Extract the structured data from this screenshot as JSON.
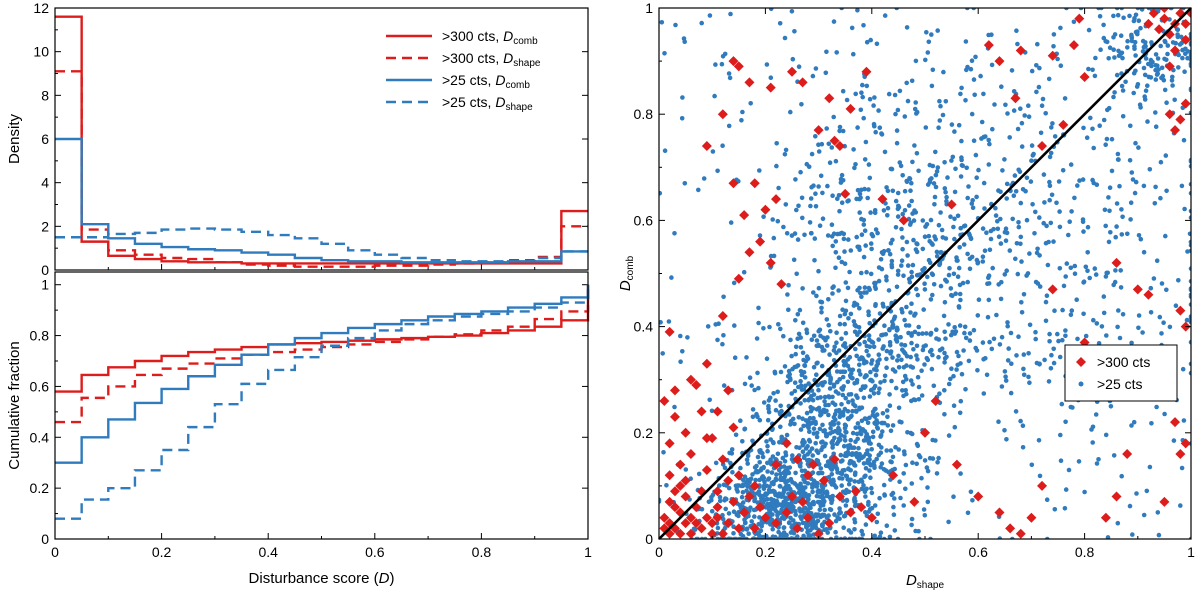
{
  "colors": {
    "red": "#dd1c1c",
    "blue": "#2f7bbd",
    "black": "#000000"
  },
  "chart_data": [
    {
      "id": "density",
      "type": "line",
      "subtype": "step-histogram",
      "title": "",
      "xlabel": "",
      "ylabel": "Density",
      "xlim": [
        0,
        1
      ],
      "ylim": [
        0,
        12
      ],
      "yticks": [
        0,
        2,
        4,
        6,
        8,
        10,
        12
      ],
      "bin_edges": [
        0,
        0.05,
        0.1,
        0.15,
        0.2,
        0.25,
        0.3,
        0.35,
        0.4,
        0.45,
        0.5,
        0.55,
        0.6,
        0.65,
        0.7,
        0.75,
        0.8,
        0.85,
        0.9,
        0.95,
        1.0
      ],
      "legend": {
        "location": "top-right"
      },
      "series": [
        {
          "name_main": ">300 cts, ",
          "name_var": "D",
          "name_sub": "comb",
          "color": "red",
          "dash": "solid",
          "values": [
            11.6,
            1.3,
            0.65,
            0.5,
            0.4,
            0.35,
            0.35,
            0.3,
            0.3,
            0.3,
            0.3,
            0.3,
            0.3,
            0.3,
            0.3,
            0.3,
            0.3,
            0.3,
            0.3,
            2.7
          ]
        },
        {
          "name_main": ">300 cts, ",
          "name_var": "D",
          "name_sub": "shape",
          "color": "red",
          "dash": "dashed",
          "values": [
            9.1,
            1.85,
            0.9,
            0.7,
            0.55,
            0.5,
            0.35,
            0.25,
            0.2,
            0.15,
            0.15,
            0.15,
            0.2,
            0.2,
            0.25,
            0.3,
            0.35,
            0.45,
            0.6,
            2.0
          ]
        },
        {
          "name_main": ">25 cts, ",
          "name_var": "D",
          "name_sub": "comb",
          "color": "blue",
          "dash": "solid",
          "values": [
            6.0,
            2.1,
            1.45,
            1.2,
            1.05,
            0.95,
            0.9,
            0.8,
            0.7,
            0.55,
            0.45,
            0.4,
            0.4,
            0.35,
            0.35,
            0.35,
            0.35,
            0.4,
            0.4,
            0.85
          ]
        },
        {
          "name_main": ">25 cts, ",
          "name_var": "D",
          "name_sub": "shape",
          "color": "blue",
          "dash": "dashed",
          "values": [
            1.5,
            1.5,
            1.65,
            1.7,
            1.85,
            1.9,
            1.85,
            1.75,
            1.6,
            1.45,
            1.2,
            0.9,
            0.7,
            0.55,
            0.45,
            0.4,
            0.4,
            0.4,
            0.55,
            0.85
          ]
        }
      ]
    },
    {
      "id": "cumulative",
      "type": "line",
      "subtype": "step-cumulative",
      "title": "",
      "xlabel": "Disturbance score (",
      "xlabel_var": "D",
      "xlabel_end": ")",
      "ylabel": "Cumulative fraction",
      "xlim": [
        0,
        1
      ],
      "ylim": [
        0,
        1.05
      ],
      "xticks": [
        0,
        0.2,
        0.4,
        0.6,
        0.8,
        1
      ],
      "xtick_labels": [
        "0",
        "0.2",
        "0.4",
        "0.6",
        "0.8",
        "1"
      ],
      "yticks": [
        0,
        0.2,
        0.4,
        0.6,
        0.8,
        1
      ],
      "ytick_labels": [
        "0",
        "0.2",
        "0.4",
        "0.6",
        "0.8",
        "1"
      ],
      "bin_edges": [
        0,
        0.05,
        0.1,
        0.15,
        0.2,
        0.25,
        0.3,
        0.35,
        0.4,
        0.45,
        0.5,
        0.55,
        0.6,
        0.65,
        0.7,
        0.75,
        0.8,
        0.85,
        0.9,
        0.95,
        1.0
      ],
      "series": [
        {
          "name": ">300 cts, D_comb",
          "color": "red",
          "dash": "solid",
          "values": [
            0.58,
            0.645,
            0.675,
            0.7,
            0.72,
            0.735,
            0.745,
            0.755,
            0.765,
            0.77,
            0.775,
            0.78,
            0.785,
            0.79,
            0.795,
            0.8,
            0.81,
            0.82,
            0.835,
            0.86,
            1.0
          ]
        },
        {
          "name": ">300 cts, D_shape",
          "color": "red",
          "dash": "dashed",
          "values": [
            0.46,
            0.555,
            0.6,
            0.645,
            0.67,
            0.69,
            0.71,
            0.725,
            0.735,
            0.745,
            0.755,
            0.765,
            0.775,
            0.785,
            0.795,
            0.805,
            0.82,
            0.835,
            0.865,
            0.895,
            1.0
          ]
        },
        {
          "name": ">25 cts, D_comb",
          "color": "blue",
          "dash": "solid",
          "values": [
            0.3,
            0.4,
            0.47,
            0.535,
            0.59,
            0.64,
            0.685,
            0.725,
            0.765,
            0.79,
            0.81,
            0.83,
            0.845,
            0.86,
            0.875,
            0.885,
            0.895,
            0.91,
            0.925,
            0.95,
            1.0
          ]
        },
        {
          "name": ">25 cts, D_shape",
          "color": "blue",
          "dash": "dashed",
          "values": [
            0.08,
            0.155,
            0.2,
            0.27,
            0.35,
            0.44,
            0.53,
            0.61,
            0.665,
            0.715,
            0.76,
            0.79,
            0.82,
            0.845,
            0.86,
            0.875,
            0.885,
            0.895,
            0.91,
            0.93,
            1.0
          ]
        }
      ]
    },
    {
      "id": "scatter",
      "type": "scatter",
      "title": "",
      "xlabel_var": "D",
      "xlabel_sub": "shape",
      "ylabel_var": "D",
      "ylabel_sub": "comb",
      "xlim": [
        0,
        1
      ],
      "ylim": [
        0,
        1
      ],
      "xticks": [
        0,
        0.2,
        0.4,
        0.6,
        0.8,
        1
      ],
      "xtick_labels": [
        "0",
        "0.2",
        "0.4",
        "0.6",
        "0.8",
        "1"
      ],
      "yticks": [
        0,
        0.2,
        0.4,
        0.6,
        0.8,
        1
      ],
      "ytick_labels": [
        "0",
        "0.2",
        "0.4",
        "0.6",
        "0.8",
        "1"
      ],
      "reference_line": {
        "from": [
          0,
          0
        ],
        "to": [
          1,
          1
        ],
        "color": "black"
      },
      "legend": {
        "location": "center-right"
      },
      "series": [
        {
          "name": ">300 cts",
          "marker": "diamond",
          "color": "red",
          "points": [
            [
              0.02,
              0.01
            ],
            [
              0.03,
              0.02
            ],
            [
              0.05,
              0.03
            ],
            [
              0.01,
              0.04
            ],
            [
              0.06,
              0.01
            ],
            [
              0.08,
              0.02
            ],
            [
              0.04,
              0.05
            ],
            [
              0.1,
              0.03
            ],
            [
              0.12,
              0.01
            ],
            [
              0.02,
              0.07
            ],
            [
              0.07,
              0.06
            ],
            [
              0.09,
              0.04
            ],
            [
              0.11,
              0.06
            ],
            [
              0.13,
              0.03
            ],
            [
              0.15,
              0.02
            ],
            [
              0.03,
              0.09
            ],
            [
              0.05,
              0.11
            ],
            [
              0.08,
              0.09
            ],
            [
              0.14,
              0.07
            ],
            [
              0.16,
              0.05
            ],
            [
              0.18,
              0.02
            ],
            [
              0.2,
              0.04
            ],
            [
              0.01,
              0.02
            ],
            [
              0.02,
              0.03
            ],
            [
              0.04,
              0.01
            ],
            [
              0.06,
              0.04
            ],
            [
              0.03,
              0.06
            ],
            [
              0.05,
              0.08
            ],
            [
              0.07,
              0.03
            ],
            [
              0.1,
              0.01
            ],
            [
              0.11,
              0.09
            ],
            [
              0.13,
              0.11
            ],
            [
              0.17,
              0.08
            ],
            [
              0.19,
              0.06
            ],
            [
              0.22,
              0.03
            ],
            [
              0.24,
              0.05
            ],
            [
              0.26,
              0.02
            ],
            [
              0.28,
              0.04
            ],
            [
              0.3,
              0.01
            ],
            [
              0.32,
              0.03
            ],
            [
              0.02,
              0.12
            ],
            [
              0.04,
              0.14
            ],
            [
              0.06,
              0.16
            ],
            [
              0.09,
              0.13
            ],
            [
              0.12,
              0.15
            ],
            [
              0.15,
              0.12
            ],
            [
              0.02,
              0.18
            ],
            [
              0.05,
              0.2
            ],
            [
              0.03,
              0.23
            ],
            [
              0.08,
              0.24
            ],
            [
              0.1,
              0.19
            ],
            [
              0.14,
              0.21
            ],
            [
              0.01,
              0.26
            ],
            [
              0.03,
              0.28
            ],
            [
              0.06,
              0.3
            ],
            [
              0.09,
              0.33
            ],
            [
              0.02,
              0.39
            ],
            [
              0.12,
              0.42
            ],
            [
              0.15,
              0.49
            ],
            [
              0.17,
              0.54
            ],
            [
              0.19,
              0.56
            ],
            [
              0.21,
              0.52
            ],
            [
              0.23,
              0.48
            ],
            [
              0.16,
              0.61
            ],
            [
              0.2,
              0.62
            ],
            [
              0.22,
              0.64
            ],
            [
              0.18,
              0.67
            ],
            [
              0.14,
              0.67
            ],
            [
              0.09,
              0.74
            ],
            [
              0.12,
              0.8
            ],
            [
              0.14,
              0.9
            ],
            [
              0.15,
              0.89
            ],
            [
              0.17,
              0.86
            ],
            [
              0.21,
              0.85
            ],
            [
              0.25,
              0.88
            ],
            [
              0.27,
              0.86
            ],
            [
              0.32,
              0.83
            ],
            [
              0.36,
              0.81
            ],
            [
              0.3,
              0.77
            ],
            [
              0.33,
              0.75
            ],
            [
              0.34,
              0.74
            ],
            [
              0.35,
              0.65
            ],
            [
              0.39,
              0.88
            ],
            [
              0.42,
              0.64
            ],
            [
              0.46,
              0.6
            ],
            [
              0.55,
              0.63
            ],
            [
              0.62,
              0.93
            ],
            [
              0.64,
              0.9
            ],
            [
              0.67,
              0.83
            ],
            [
              0.68,
              0.92
            ],
            [
              0.74,
              0.91
            ],
            [
              0.78,
              0.93
            ],
            [
              0.8,
              0.87
            ],
            [
              0.79,
              0.98
            ],
            [
              0.76,
              0.78
            ],
            [
              0.72,
              0.74
            ],
            [
              0.74,
              0.47
            ],
            [
              0.8,
              0.37
            ],
            [
              0.84,
              0.35
            ],
            [
              0.86,
              0.52
            ],
            [
              0.9,
              0.47
            ],
            [
              0.92,
              0.46
            ],
            [
              0.88,
              0.16
            ],
            [
              0.86,
              0.08
            ],
            [
              0.84,
              0.04
            ],
            [
              0.72,
              0.1
            ],
            [
              0.7,
              0.04
            ],
            [
              0.68,
              0.01
            ],
            [
              0.66,
              0.02
            ],
            [
              0.64,
              0.05
            ],
            [
              0.6,
              0.08
            ],
            [
              0.56,
              0.14
            ],
            [
              0.52,
              0.26
            ],
            [
              0.5,
              0.2
            ],
            [
              0.48,
              0.07
            ],
            [
              0.44,
              0.12
            ],
            [
              0.4,
              0.04
            ],
            [
              0.38,
              0.06
            ],
            [
              0.36,
              0.05
            ],
            [
              0.34,
              0.08
            ],
            [
              0.31,
              0.11
            ],
            [
              0.28,
              0.12
            ],
            [
              0.26,
              0.15
            ],
            [
              0.24,
              0.18
            ],
            [
              0.22,
              0.14
            ],
            [
              0.25,
              0.08
            ],
            [
              0.27,
              0.07
            ],
            [
              0.29,
              0.14
            ],
            [
              0.33,
              0.15
            ],
            [
              0.37,
              0.09
            ],
            [
              0.95,
              0.07
            ],
            [
              0.97,
              0.22
            ],
            [
              0.98,
              0.16
            ],
            [
              0.99,
              0.18
            ],
            [
              0.98,
              0.43
            ],
            [
              0.99,
              0.4
            ],
            [
              0.96,
              0.8
            ],
            [
              0.97,
              0.77
            ],
            [
              0.98,
              0.79
            ],
            [
              0.99,
              0.82
            ],
            [
              0.94,
              0.96
            ],
            [
              0.95,
              0.98
            ],
            [
              0.96,
              0.95
            ],
            [
              0.97,
              0.97
            ],
            [
              0.98,
              0.99
            ],
            [
              0.99,
              0.97
            ],
            [
              0.93,
              0.99
            ],
            [
              0.92,
              0.97
            ],
            [
              0.95,
              1.0
            ],
            [
              1.0,
              0.99
            ],
            [
              0.99,
              0.94
            ],
            [
              0.97,
              0.92
            ],
            [
              0.96,
              0.89
            ],
            [
              0.09,
              0.19
            ],
            [
              0.11,
              0.24
            ],
            [
              0.13,
              0.28
            ],
            [
              0.07,
              0.29
            ],
            [
              0.04,
              0.1
            ],
            [
              0.11,
              0.04
            ],
            [
              0.18,
              0.1
            ]
          ]
        },
        {
          "name": ">25 cts",
          "marker": "circle",
          "color": "blue",
          "clusters": [
            {
              "cx": 0.22,
              "cy": 0.06,
              "sx": 0.07,
              "sy": 0.05,
              "n": 600
            },
            {
              "cx": 0.33,
              "cy": 0.17,
              "sx": 0.07,
              "sy": 0.09,
              "n": 550
            },
            {
              "cx": 0.4,
              "cy": 0.38,
              "sx": 0.1,
              "sy": 0.12,
              "n": 420
            },
            {
              "cx": 0.45,
              "cy": 0.62,
              "sx": 0.13,
              "sy": 0.14,
              "n": 300
            },
            {
              "cx": 0.7,
              "cy": 0.55,
              "sx": 0.18,
              "sy": 0.22,
              "n": 420
            },
            {
              "cx": 0.93,
              "cy": 0.93,
              "sx": 0.05,
              "sy": 0.05,
              "n": 150
            },
            {
              "cx": 0.5,
              "cy": 0.5,
              "sx": 0.35,
              "sy": 0.35,
              "n": 400
            }
          ]
        }
      ]
    }
  ]
}
